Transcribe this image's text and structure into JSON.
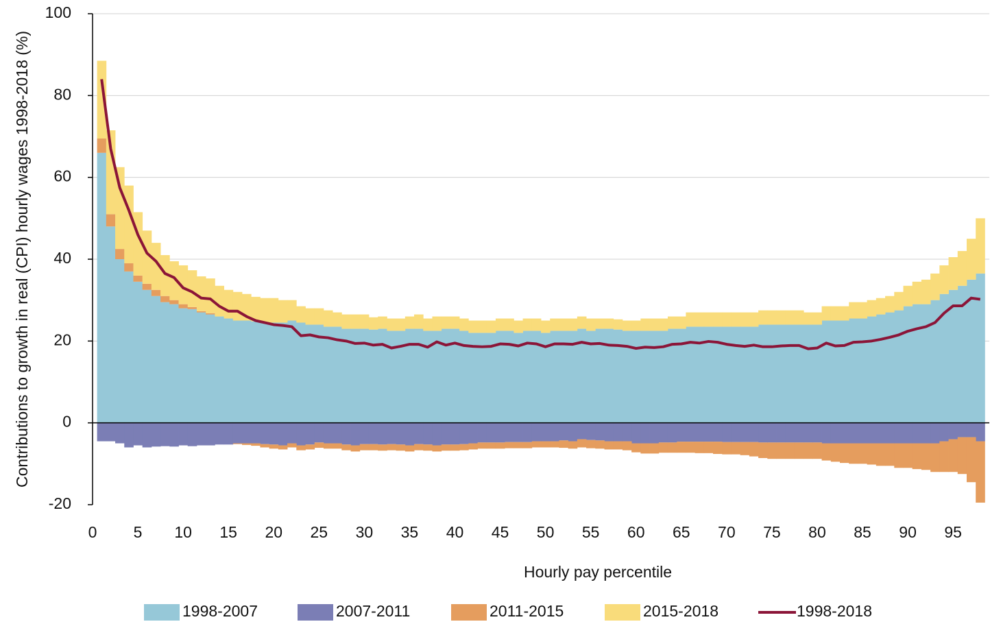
{
  "chart_data": {
    "type": "bar",
    "stacked": true,
    "x_label": "Hourly pay percentile",
    "y_label": "Contributions to growth in real (CPI) hourly wages 1998-2018 (%)",
    "x": [
      1,
      2,
      3,
      4,
      5,
      6,
      7,
      8,
      9,
      10,
      11,
      12,
      13,
      14,
      15,
      16,
      17,
      18,
      19,
      20,
      21,
      22,
      23,
      24,
      25,
      26,
      27,
      28,
      29,
      30,
      31,
      32,
      33,
      34,
      35,
      36,
      37,
      38,
      39,
      40,
      41,
      42,
      43,
      44,
      45,
      46,
      47,
      48,
      49,
      50,
      51,
      52,
      53,
      54,
      55,
      56,
      57,
      58,
      59,
      60,
      61,
      62,
      63,
      64,
      65,
      66,
      67,
      68,
      69,
      70,
      71,
      72,
      73,
      74,
      75,
      76,
      77,
      78,
      79,
      80,
      81,
      82,
      83,
      84,
      85,
      86,
      87,
      88,
      89,
      90,
      91,
      92,
      93,
      94,
      95,
      96,
      97,
      98
    ],
    "xlim": [
      0,
      99
    ],
    "xticks": [
      0,
      5,
      10,
      15,
      20,
      25,
      30,
      35,
      40,
      45,
      50,
      55,
      60,
      65,
      70,
      75,
      80,
      85,
      90,
      95
    ],
    "ylim": [
      -20,
      100
    ],
    "yticks": [
      -20,
      0,
      20,
      40,
      60,
      80,
      100
    ],
    "grid": true,
    "series": [
      {
        "name": "1998-2007",
        "type": "bar",
        "color": "#96c8d8",
        "values": [
          66,
          48,
          40,
          37,
          34.5,
          32.5,
          31,
          29.5,
          29,
          28,
          27.8,
          27,
          26.5,
          26,
          25.5,
          25,
          25,
          24.8,
          24.5,
          24.5,
          24.5,
          25,
          24.5,
          24,
          24,
          23.5,
          23.5,
          23,
          23,
          23,
          22.8,
          23,
          22.5,
          22.5,
          23,
          23,
          22.5,
          22.5,
          23,
          23,
          22.5,
          22,
          22,
          22,
          22.5,
          22.5,
          22,
          22.5,
          22.5,
          22,
          22.5,
          22.5,
          22.5,
          23,
          22.5,
          23,
          23,
          22.8,
          22.5,
          22.5,
          22.5,
          22.5,
          22.5,
          23,
          23,
          23.5,
          23.5,
          23.5,
          23.5,
          23.5,
          23.5,
          23.5,
          23.5,
          24,
          24,
          24,
          24,
          24,
          24,
          24,
          25,
          25,
          25,
          25.5,
          25.5,
          26,
          26.5,
          27,
          27.5,
          28.5,
          29,
          29,
          30,
          31.5,
          32.5,
          33.5,
          35,
          36.5
        ]
      },
      {
        "name": "2007-2011",
        "type": "bar",
        "color": "#7b7eb5",
        "values": [
          -4.5,
          -4.5,
          -5,
          -6,
          -5.5,
          -6,
          -5.8,
          -5.7,
          -5.8,
          -5.5,
          -5.7,
          -5.5,
          -5.5,
          -5.3,
          -5.3,
          -5,
          -5,
          -5,
          -5.2,
          -5.3,
          -5.5,
          -5,
          -5.5,
          -5.3,
          -4.8,
          -5,
          -5,
          -5.3,
          -5.5,
          -5.2,
          -5.2,
          -5.3,
          -5.2,
          -5.3,
          -5.5,
          -5.2,
          -5.3,
          -5.5,
          -5.3,
          -5.3,
          -5.2,
          -5,
          -4.8,
          -4.8,
          -4.8,
          -4.7,
          -4.7,
          -4.7,
          -4.5,
          -4.5,
          -4.5,
          -4.3,
          -4.5,
          -4,
          -4.2,
          -4.3,
          -4.5,
          -4.5,
          -4.5,
          -5,
          -5,
          -5,
          -4.8,
          -4.8,
          -4.6,
          -4.6,
          -4.6,
          -4.6,
          -4.6,
          -4.7,
          -4.7,
          -4.7,
          -4.7,
          -4.8,
          -4.8,
          -4.8,
          -4.8,
          -4.8,
          -4.8,
          -4.8,
          -5,
          -5,
          -5,
          -5,
          -5,
          -5,
          -5,
          -5,
          -5,
          -5,
          -5,
          -5,
          -5,
          -4.5,
          -4,
          -3.5,
          -3.5,
          -4.5
        ]
      },
      {
        "name": "2011-2015",
        "type": "bar",
        "color": "#e59d5e",
        "values": [
          3.5,
          3,
          2.5,
          2,
          1.5,
          1.5,
          1.5,
          1.5,
          1,
          1,
          0.5,
          0.3,
          0.3,
          0,
          0,
          -0.2,
          -0.4,
          -0.6,
          -0.8,
          -1,
          -1,
          -1,
          -1.2,
          -1.2,
          -1.3,
          -1.3,
          -1.3,
          -1.4,
          -1.5,
          -1.5,
          -1.5,
          -1.5,
          -1.5,
          -1.5,
          -1.5,
          -1.5,
          -1.5,
          -1.5,
          -1.5,
          -1.5,
          -1.5,
          -1.5,
          -1.5,
          -1.5,
          -1.5,
          -1.5,
          -1.5,
          -1.5,
          -1.5,
          -1.5,
          -1.5,
          -1.8,
          -1.8,
          -2,
          -2,
          -2,
          -2,
          -2,
          -2.2,
          -2.2,
          -2.5,
          -2.5,
          -2.5,
          -2.5,
          -2.7,
          -2.7,
          -2.8,
          -2.8,
          -3,
          -3,
          -3,
          -3.2,
          -3.5,
          -3.8,
          -4,
          -4,
          -4,
          -4,
          -4,
          -4,
          -4.2,
          -4.5,
          -4.8,
          -5,
          -5,
          -5.2,
          -5.5,
          -5.5,
          -6,
          -6,
          -6.3,
          -6.5,
          -7,
          -7.5,
          -8,
          -9,
          -11,
          -15
        ]
      },
      {
        "name": "2015-2018",
        "type": "bar",
        "color": "#f9dc7b",
        "values": [
          19,
          20.5,
          20,
          19,
          15.5,
          13,
          11.5,
          10,
          9.5,
          9.5,
          9,
          8.5,
          8.5,
          7.5,
          7,
          7,
          6.5,
          6,
          6,
          6,
          5.5,
          5,
          4,
          4,
          4,
          4,
          3.5,
          3.5,
          3.5,
          3.5,
          3,
          3,
          3,
          3,
          3,
          3.5,
          3,
          3.5,
          3,
          3,
          3,
          3,
          3,
          3,
          3,
          3,
          3,
          3,
          3,
          3,
          3,
          3,
          3,
          3,
          3,
          2.5,
          2.5,
          2.5,
          2.5,
          2.5,
          3,
          3,
          3,
          3,
          3,
          3.5,
          3.5,
          3.5,
          3.5,
          3.5,
          3.5,
          3.5,
          3.5,
          3.5,
          3.5,
          3.5,
          3.5,
          3.5,
          3,
          3,
          3.5,
          3.5,
          3.5,
          4,
          4,
          4,
          4,
          4,
          4.5,
          5,
          5.5,
          6,
          6.5,
          7,
          8,
          8.5,
          10,
          13.5
        ]
      },
      {
        "name": "1998-2018",
        "type": "line",
        "color": "#8b1538",
        "values": [
          84,
          67,
          57.5,
          52,
          46,
          41.5,
          39.5,
          36.5,
          35.5,
          33,
          32,
          30.5,
          30.3,
          28.5,
          27.3,
          27.3,
          26,
          25,
          24.5,
          24,
          23.8,
          23.5,
          21.3,
          21.5,
          21,
          20.8,
          20.3,
          20,
          19.4,
          19.5,
          19,
          19.2,
          18.3,
          18.7,
          19.2,
          19.2,
          18.5,
          19.8,
          19,
          19.5,
          18.9,
          18.7,
          18.6,
          18.7,
          19.3,
          19.2,
          18.8,
          19.5,
          19.3,
          18.6,
          19.3,
          19.3,
          19.2,
          19.7,
          19.3,
          19.4,
          19,
          18.9,
          18.7,
          18.2,
          18.5,
          18.4,
          18.6,
          19.2,
          19.3,
          19.7,
          19.5,
          19.9,
          19.7,
          19.2,
          18.9,
          18.7,
          19,
          18.6,
          18.6,
          18.8,
          18.9,
          18.9,
          18.1,
          18.3,
          19.5,
          18.8,
          18.9,
          19.7,
          19.8,
          20,
          20.4,
          20.9,
          21.5,
          22.4,
          23,
          23.5,
          24.5,
          26.8,
          28.6,
          28.6,
          30.5,
          30.2
        ]
      }
    ]
  }
}
